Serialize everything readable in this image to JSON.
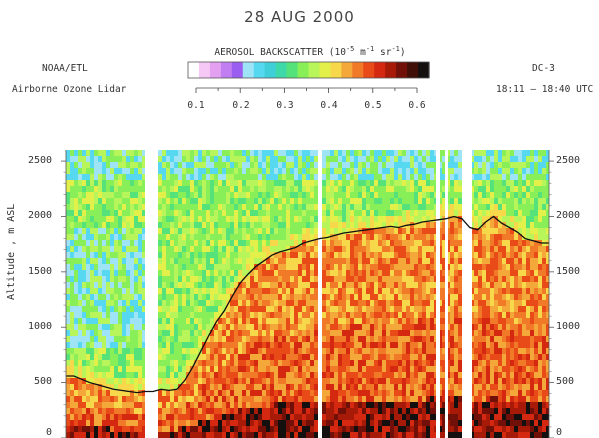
{
  "header": {
    "date": "28 AUG 2000",
    "org": "NOAA/ETL",
    "instrument": "Airborne Ozone Lidar",
    "aircraft": "DC-3",
    "time_range": "18:11 – 18:40 UTC"
  },
  "colorbar": {
    "title_main": "AEROSOL BACKSCATTER (10",
    "title_exp1": "-5",
    "title_mid": " m",
    "title_exp2": "-1",
    "title_mid2": " sr",
    "title_exp3": "-1",
    "title_end": ")",
    "ticks": [
      "0.1",
      "0.2",
      "0.3",
      "0.4",
      "0.5",
      "0.6"
    ],
    "colors": [
      "#ffffff",
      "#f6c8f6",
      "#e3a0f0",
      "#c07ef2",
      "#9a5ff0",
      "#9fe3f6",
      "#55d8f0",
      "#40cfd8",
      "#3fd8a8",
      "#55e27a",
      "#88ef58",
      "#b8f55a",
      "#e3f04a",
      "#f7d84a",
      "#f5a83a",
      "#f07a28",
      "#e84a18",
      "#d42810",
      "#a81a08",
      "#701008",
      "#401008",
      "#151010"
    ]
  },
  "axes": {
    "ylabel": "Altitude , m ASL",
    "ytick_labels": [
      "2500",
      "2000",
      "1500",
      "1000",
      "500",
      "0"
    ]
  },
  "chart_data": {
    "type": "heatmap",
    "title": "28 AUG 2000",
    "ylabel": "Altitude , m ASL",
    "ylim": [
      0,
      2600
    ],
    "yticks": [
      0,
      500,
      1000,
      1500,
      2000,
      2500
    ],
    "colorbar_range": [
      0.1,
      0.6
    ],
    "colorbar_label": "AEROSOL BACKSCATTER (10^-5 m^-1 sr^-1)",
    "boundary_layer_top_m": [
      560,
      560,
      530,
      500,
      480,
      460,
      440,
      430,
      420,
      410,
      420,
      420,
      440,
      430,
      440,
      520,
      640,
      780,
      920,
      1050,
      1150,
      1280,
      1400,
      1480,
      1550,
      1600,
      1650,
      1680,
      1700,
      1720,
      1760,
      1780,
      1800,
      1810,
      1830,
      1850,
      1860,
      1870,
      1880,
      1890,
      1900,
      1910,
      1900,
      1920,
      1930,
      1950,
      1960,
      1970,
      1980,
      2000,
      1980,
      1900,
      1880,
      1950,
      2000,
      1940,
      1900,
      1860,
      1800,
      1780,
      1760,
      1760
    ]
  }
}
